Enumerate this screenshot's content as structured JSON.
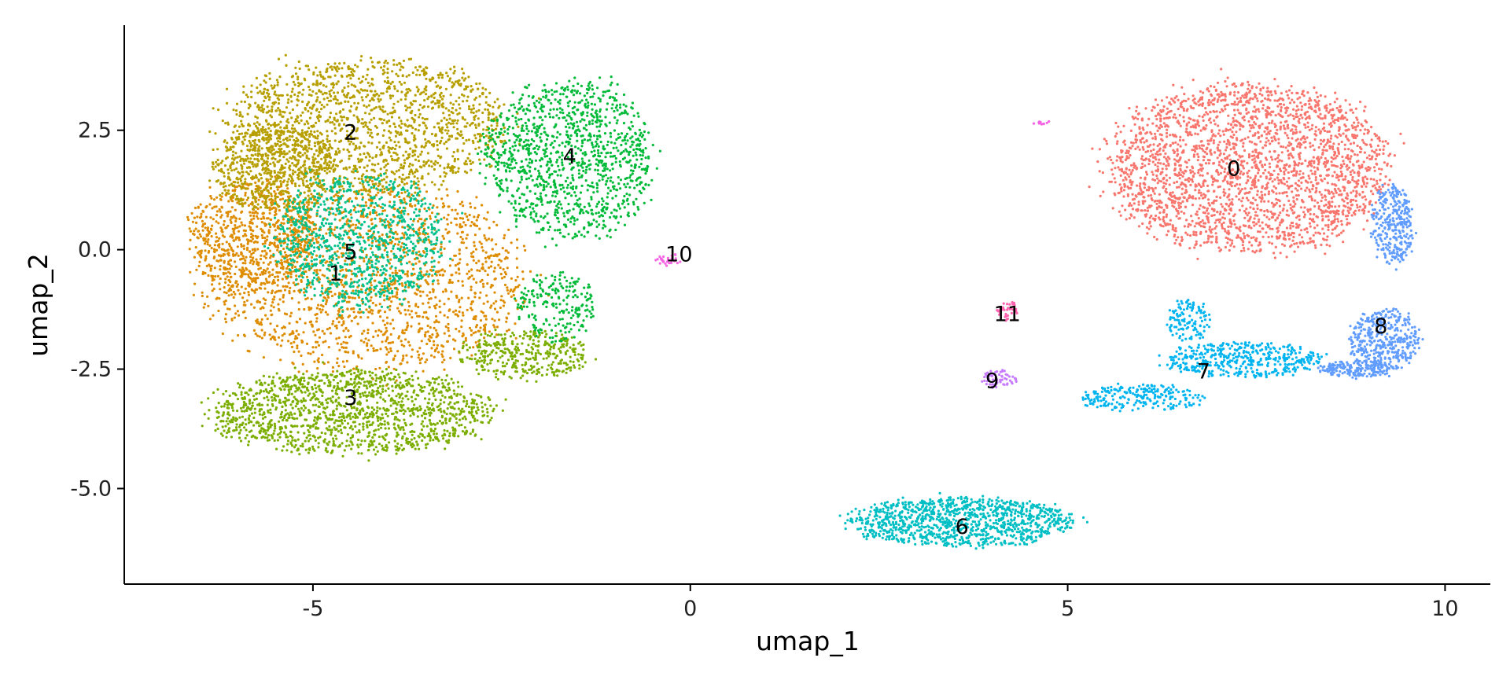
{
  "chart_data": {
    "type": "scatter",
    "title": "",
    "xlabel": "umap_1",
    "ylabel": "umap_2",
    "xlim": [
      -7.5,
      10.6
    ],
    "ylim": [
      -7.0,
      4.7
    ],
    "xticks": [
      -5,
      0,
      5,
      10
    ],
    "xtick_labels": [
      "-5",
      "0",
      "5",
      "10"
    ],
    "yticks": [
      -5.0,
      -2.5,
      0.0,
      2.5
    ],
    "ytick_labels": [
      "-5.0",
      "-2.5",
      "0.0",
      "2.5"
    ],
    "grid": false,
    "legend": "none",
    "clusters": [
      {
        "id": "0",
        "color": "#F8766D",
        "label_x": 7.2,
        "label_y": 1.7,
        "n": 2600,
        "blobs": [
          {
            "cx": 7.4,
            "cy": 1.7,
            "rx": 2.0,
            "ry": 1.9,
            "w": 1.0
          }
        ]
      },
      {
        "id": "1",
        "color": "#DE8C00",
        "label_x": -4.7,
        "label_y": -0.5,
        "n": 2400,
        "blobs": [
          {
            "cx": -4.3,
            "cy": -0.6,
            "rx": 2.3,
            "ry": 2.1,
            "w": 0.75
          },
          {
            "cx": -5.8,
            "cy": 0.3,
            "rx": 0.9,
            "ry": 1.3,
            "w": 0.25
          }
        ]
      },
      {
        "id": "2",
        "color": "#B79F00",
        "label_x": -4.5,
        "label_y": 2.45,
        "n": 2200,
        "blobs": [
          {
            "cx": -4.3,
            "cy": 2.6,
            "rx": 2.0,
            "ry": 1.5,
            "w": 0.7
          },
          {
            "cx": -5.5,
            "cy": 1.7,
            "rx": 0.9,
            "ry": 1.0,
            "w": 0.3
          }
        ]
      },
      {
        "id": "3",
        "color": "#7CAE00",
        "label_x": -4.5,
        "label_y": -3.1,
        "n": 1800,
        "blobs": [
          {
            "cx": -4.5,
            "cy": -3.4,
            "rx": 2.0,
            "ry": 0.95,
            "w": 0.8
          },
          {
            "cx": -2.2,
            "cy": -2.2,
            "rx": 0.9,
            "ry": 0.55,
            "w": 0.2
          }
        ]
      },
      {
        "id": "4",
        "color": "#00BA38",
        "label_x": -1.6,
        "label_y": 1.95,
        "n": 1400,
        "blobs": [
          {
            "cx": -1.6,
            "cy": 1.9,
            "rx": 1.2,
            "ry": 1.8,
            "w": 0.85
          },
          {
            "cx": -1.8,
            "cy": -1.2,
            "rx": 0.6,
            "ry": 0.8,
            "w": 0.15
          }
        ]
      },
      {
        "id": "5",
        "color": "#00C08B",
        "label_x": -4.5,
        "label_y": -0.05,
        "n": 1000,
        "blobs": [
          {
            "cx": -4.4,
            "cy": 0.2,
            "rx": 1.2,
            "ry": 1.5,
            "w": 1.0
          }
        ]
      },
      {
        "id": "6",
        "color": "#00BFC4",
        "label_x": 3.6,
        "label_y": -5.8,
        "n": 1100,
        "blobs": [
          {
            "cx": 3.6,
            "cy": -5.7,
            "rx": 1.6,
            "ry": 0.55,
            "w": 1.0
          }
        ]
      },
      {
        "id": "7",
        "color": "#00B4F0",
        "label_x": 6.8,
        "label_y": -2.55,
        "n": 800,
        "blobs": [
          {
            "cx": 7.3,
            "cy": -2.3,
            "rx": 1.1,
            "ry": 0.4,
            "w": 0.55
          },
          {
            "cx": 6.0,
            "cy": -3.1,
            "rx": 0.9,
            "ry": 0.3,
            "w": 0.3
          },
          {
            "cx": 6.6,
            "cy": -1.5,
            "rx": 0.3,
            "ry": 0.5,
            "w": 0.15
          }
        ]
      },
      {
        "id": "8",
        "color": "#619CFF",
        "label_x": 9.15,
        "label_y": -1.6,
        "n": 900,
        "blobs": [
          {
            "cx": 9.2,
            "cy": -1.9,
            "rx": 0.5,
            "ry": 0.7,
            "w": 0.45
          },
          {
            "cx": 9.3,
            "cy": 0.5,
            "rx": 0.3,
            "ry": 0.9,
            "w": 0.35
          },
          {
            "cx": 8.8,
            "cy": -2.5,
            "rx": 0.5,
            "ry": 0.2,
            "w": 0.2
          }
        ]
      },
      {
        "id": "9",
        "color": "#C77CFF",
        "label_x": 4.0,
        "label_y": -2.75,
        "n": 60,
        "blobs": [
          {
            "cx": 4.1,
            "cy": -2.7,
            "rx": 0.25,
            "ry": 0.2,
            "w": 1.0
          }
        ]
      },
      {
        "id": "10",
        "color": "#F564E3",
        "label_x": -0.15,
        "label_y": -0.1,
        "n": 40,
        "blobs": [
          {
            "cx": -0.3,
            "cy": -0.2,
            "rx": 0.2,
            "ry": 0.15,
            "w": 0.7
          },
          {
            "cx": 4.7,
            "cy": 2.65,
            "rx": 0.15,
            "ry": 0.05,
            "w": 0.3
          }
        ]
      },
      {
        "id": "11",
        "color": "#FF64B0",
        "label_x": 4.2,
        "label_y": -1.35,
        "n": 40,
        "blobs": [
          {
            "cx": 4.2,
            "cy": -1.3,
            "rx": 0.15,
            "ry": 0.25,
            "w": 1.0
          }
        ]
      }
    ]
  }
}
